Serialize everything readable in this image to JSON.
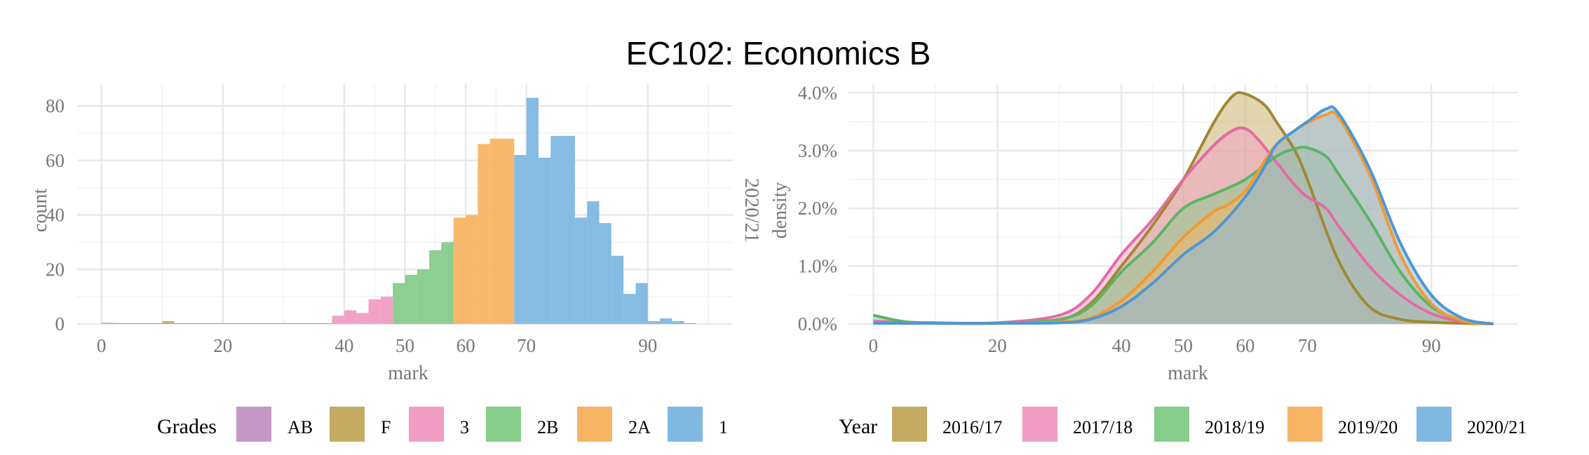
{
  "title": "EC102: Economics B",
  "chart_data": [
    {
      "type": "bar",
      "subtype": "histogram",
      "xlabel": "mark",
      "ylabel": "count",
      "xlim": [
        -4,
        104
      ],
      "ylim": [
        0,
        88
      ],
      "x_ticks": [
        0,
        20,
        40,
        50,
        60,
        70,
        90
      ],
      "y_ticks": [
        0,
        20,
        40,
        60,
        80
      ],
      "grid": true,
      "bin_width": 2,
      "legend": {
        "title": "Grades",
        "position": "bottom",
        "entries": [
          {
            "label": "AB",
            "color": "#c497c7"
          },
          {
            "label": "F",
            "color": "#c5ab62"
          },
          {
            "label": "3",
            "color": "#f19dc4"
          },
          {
            "label": "2B",
            "color": "#86cc8a"
          },
          {
            "label": "2A",
            "color": "#f7b464"
          },
          {
            "label": "1",
            "color": "#80b8e2"
          }
        ]
      },
      "bins": [
        {
          "x0": 0,
          "x1": 2,
          "count": 0.4,
          "grade": "F"
        },
        {
          "x0": 2,
          "x1": 4,
          "count": 0.3,
          "grade": "F"
        },
        {
          "x0": 4,
          "x1": 6,
          "count": 0.3,
          "grade": "F"
        },
        {
          "x0": 6,
          "x1": 8,
          "count": 0.3,
          "grade": "F"
        },
        {
          "x0": 8,
          "x1": 10,
          "count": 0.3,
          "grade": "F"
        },
        {
          "x0": 10,
          "x1": 12,
          "count": 1,
          "grade": "F"
        },
        {
          "x0": 12,
          "x1": 14,
          "count": 0.3,
          "grade": "F"
        },
        {
          "x0": 14,
          "x1": 16,
          "count": 0.3,
          "grade": "F"
        },
        {
          "x0": 16,
          "x1": 18,
          "count": 0.3,
          "grade": "F"
        },
        {
          "x0": 18,
          "x1": 20,
          "count": 0.3,
          "grade": "F"
        },
        {
          "x0": 20,
          "x1": 22,
          "count": 0.3,
          "grade": "F"
        },
        {
          "x0": 22,
          "x1": 24,
          "count": 0.3,
          "grade": "F"
        },
        {
          "x0": 24,
          "x1": 26,
          "count": 0.3,
          "grade": "F"
        },
        {
          "x0": 26,
          "x1": 28,
          "count": 0.3,
          "grade": "F"
        },
        {
          "x0": 28,
          "x1": 30,
          "count": 0.3,
          "grade": "F"
        },
        {
          "x0": 30,
          "x1": 32,
          "count": 0.3,
          "grade": "F"
        },
        {
          "x0": 32,
          "x1": 34,
          "count": 0.3,
          "grade": "F"
        },
        {
          "x0": 34,
          "x1": 36,
          "count": 0.3,
          "grade": "F"
        },
        {
          "x0": 36,
          "x1": 38,
          "count": 0.3,
          "grade": "F"
        },
        {
          "x0": 38,
          "x1": 40,
          "count": 3,
          "grade": "3"
        },
        {
          "x0": 40,
          "x1": 42,
          "count": 5,
          "grade": "3"
        },
        {
          "x0": 42,
          "x1": 44,
          "count": 4,
          "grade": "3"
        },
        {
          "x0": 44,
          "x1": 46,
          "count": 9,
          "grade": "3"
        },
        {
          "x0": 46,
          "x1": 48,
          "count": 10,
          "grade": "3"
        },
        {
          "x0": 48,
          "x1": 50,
          "count": 15,
          "grade": "2B"
        },
        {
          "x0": 50,
          "x1": 52,
          "count": 18,
          "grade": "2B"
        },
        {
          "x0": 52,
          "x1": 54,
          "count": 20,
          "grade": "2B"
        },
        {
          "x0": 54,
          "x1": 56,
          "count": 27,
          "grade": "2B"
        },
        {
          "x0": 56,
          "x1": 58,
          "count": 30,
          "grade": "2B"
        },
        {
          "x0": 58,
          "x1": 60,
          "count": 39,
          "grade": "2A"
        },
        {
          "x0": 60,
          "x1": 62,
          "count": 40,
          "grade": "2A"
        },
        {
          "x0": 62,
          "x1": 64,
          "count": 66,
          "grade": "2A"
        },
        {
          "x0": 64,
          "x1": 66,
          "count": 68,
          "grade": "2A"
        },
        {
          "x0": 66,
          "x1": 68,
          "count": 68,
          "grade": "2A"
        },
        {
          "x0": 68,
          "x1": 70,
          "count": 62,
          "grade": "1"
        },
        {
          "x0": 70,
          "x1": 72,
          "count": 83,
          "grade": "1"
        },
        {
          "x0": 72,
          "x1": 74,
          "count": 61,
          "grade": "1"
        },
        {
          "x0": 74,
          "x1": 76,
          "count": 69,
          "grade": "1"
        },
        {
          "x0": 76,
          "x1": 78,
          "count": 69,
          "grade": "1"
        },
        {
          "x0": 78,
          "x1": 80,
          "count": 39,
          "grade": "1"
        },
        {
          "x0": 80,
          "x1": 82,
          "count": 45,
          "grade": "1"
        },
        {
          "x0": 82,
          "x1": 84,
          "count": 37,
          "grade": "1"
        },
        {
          "x0": 84,
          "x1": 86,
          "count": 25,
          "grade": "1"
        },
        {
          "x0": 86,
          "x1": 88,
          "count": 11,
          "grade": "1"
        },
        {
          "x0": 88,
          "x1": 90,
          "count": 15,
          "grade": "1"
        },
        {
          "x0": 90,
          "x1": 92,
          "count": 1,
          "grade": "1"
        },
        {
          "x0": 92,
          "x1": 94,
          "count": 2,
          "grade": "1"
        },
        {
          "x0": 94,
          "x1": 96,
          "count": 1,
          "grade": "1"
        },
        {
          "x0": 96,
          "x1": 98,
          "count": 0.3,
          "grade": "1"
        }
      ]
    },
    {
      "type": "area",
      "subtype": "density",
      "xlabel": "mark",
      "ylabel": "density",
      "facet_strip": "2020/21",
      "xlim": [
        -4,
        104
      ],
      "ylim": [
        0,
        0.0415
      ],
      "x_ticks": [
        0,
        20,
        40,
        50,
        60,
        70,
        90
      ],
      "y_ticks": [
        0,
        0.01,
        0.02,
        0.03,
        0.04
      ],
      "y_tick_labels": [
        "0.0%",
        "1.0%",
        "2.0%",
        "3.0%",
        "4.0%"
      ],
      "grid": true,
      "legend": {
        "title": "Year",
        "position": "bottom"
      },
      "series": [
        {
          "name": "2016/17",
          "fill": "#c5ab62",
          "line": "#a08932",
          "x": [
            0,
            5,
            10,
            20,
            30,
            35,
            40,
            45,
            50,
            55,
            58,
            60,
            63,
            65,
            68,
            70,
            75,
            80,
            85,
            90,
            95,
            100
          ],
          "y": [
            0.0003,
            0.0002,
            0.0001,
            0.0001,
            0.0007,
            0.0035,
            0.01,
            0.017,
            0.025,
            0.035,
            0.0395,
            0.0398,
            0.038,
            0.035,
            0.03,
            0.025,
            0.011,
            0.003,
            0.0008,
            0.0003,
            0.0001,
            0.0
          ]
        },
        {
          "name": "2017/18",
          "fill": "#f19dc4",
          "line": "#e56aa6",
          "x": [
            0,
            5,
            10,
            20,
            30,
            35,
            40,
            45,
            50,
            55,
            58,
            60,
            62,
            65,
            68,
            70,
            73,
            75,
            80,
            85,
            90,
            95,
            100
          ],
          "y": [
            0.0005,
            0.0002,
            0.0001,
            0.0002,
            0.0015,
            0.005,
            0.012,
            0.018,
            0.025,
            0.031,
            0.0335,
            0.0338,
            0.032,
            0.028,
            0.024,
            0.022,
            0.02,
            0.017,
            0.01,
            0.005,
            0.0018,
            0.0004,
            0.0
          ]
        },
        {
          "name": "2018/19",
          "fill": "#86cc8a",
          "line": "#5bb563",
          "x": [
            0,
            5,
            10,
            20,
            30,
            35,
            40,
            45,
            50,
            55,
            60,
            65,
            68,
            70,
            73,
            75,
            80,
            85,
            90,
            95,
            100
          ],
          "y": [
            0.0015,
            0.0004,
            0.0002,
            0.0001,
            0.0008,
            0.003,
            0.009,
            0.014,
            0.02,
            0.0225,
            0.025,
            0.029,
            0.0303,
            0.0305,
            0.029,
            0.026,
            0.018,
            0.009,
            0.003,
            0.0006,
            0.0
          ]
        },
        {
          "name": "2019/20",
          "fill": "#f7b464",
          "line": "#f49a2f",
          "x": [
            0,
            5,
            10,
            20,
            30,
            35,
            40,
            45,
            50,
            55,
            57,
            60,
            63,
            65,
            68,
            70,
            73,
            75,
            80,
            85,
            90,
            95,
            100
          ],
          "y": [
            0.0002,
            0.0001,
            0.0001,
            0.0001,
            0.0003,
            0.001,
            0.004,
            0.009,
            0.015,
            0.0195,
            0.0205,
            0.023,
            0.028,
            0.031,
            0.0335,
            0.0348,
            0.0362,
            0.0358,
            0.026,
            0.012,
            0.0035,
            0.0006,
            0.0
          ]
        },
        {
          "name": "2020/21",
          "fill": "#80b8e2",
          "line": "#4d97d4",
          "x": [
            0,
            5,
            10,
            20,
            30,
            35,
            40,
            45,
            50,
            55,
            60,
            63,
            65,
            68,
            70,
            73,
            75,
            80,
            85,
            90,
            95,
            100
          ],
          "y": [
            0.0001,
            0.0001,
            0.0001,
            0.0001,
            0.0002,
            0.0008,
            0.003,
            0.007,
            0.012,
            0.016,
            0.022,
            0.027,
            0.031,
            0.0335,
            0.035,
            0.0372,
            0.0365,
            0.027,
            0.014,
            0.005,
            0.001,
            0.0
          ]
        }
      ]
    }
  ]
}
